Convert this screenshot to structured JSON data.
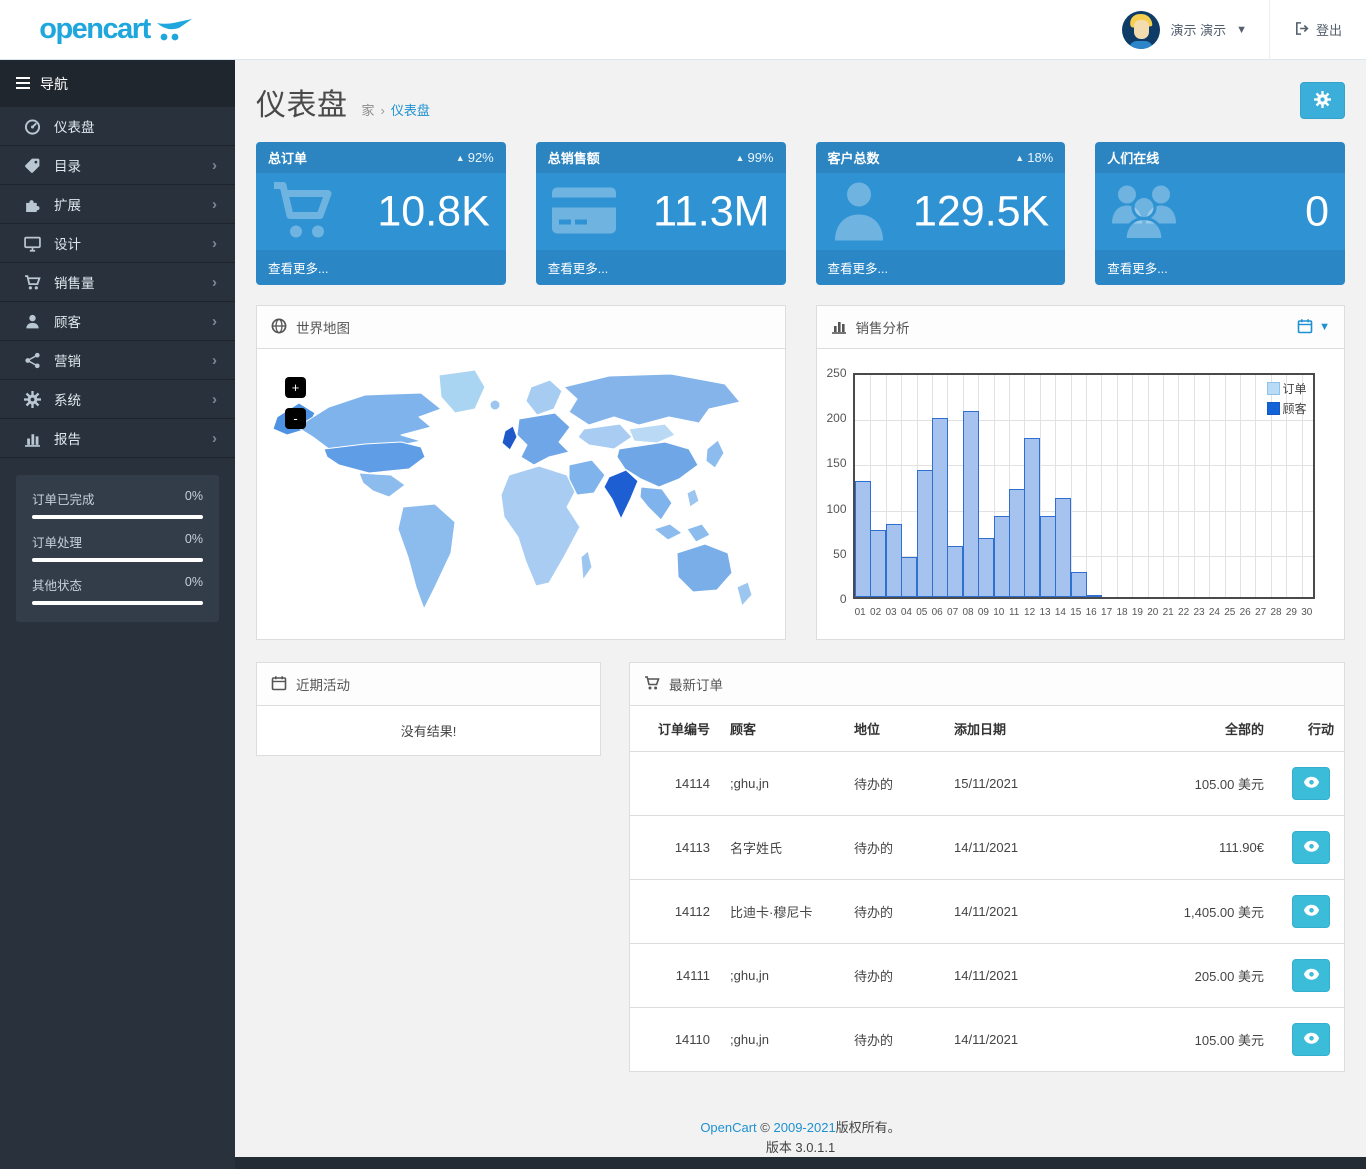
{
  "header": {
    "logo_text": "opencart",
    "user_name": "演示 演示",
    "logout_label": "登出"
  },
  "sidebar": {
    "nav_header": "导航",
    "items": [
      {
        "label": "仪表盘",
        "icon": "dashboard-icon",
        "has_children": false
      },
      {
        "label": "目录",
        "icon": "tags-icon",
        "has_children": true
      },
      {
        "label": "扩展",
        "icon": "puzzle-icon",
        "has_children": true
      },
      {
        "label": "设计",
        "icon": "monitor-icon",
        "has_children": true
      },
      {
        "label": "销售量",
        "icon": "cart-icon",
        "has_children": true
      },
      {
        "label": "顾客",
        "icon": "user-icon",
        "has_children": true
      },
      {
        "label": "营销",
        "icon": "share-icon",
        "has_children": true
      },
      {
        "label": "系统",
        "icon": "gear-icon",
        "has_children": true
      },
      {
        "label": "报告",
        "icon": "bar-chart-icon",
        "has_children": true
      }
    ],
    "stats": [
      {
        "label": "订单已完成",
        "value": "0%"
      },
      {
        "label": "订单处理",
        "value": "0%"
      },
      {
        "label": "其他状态",
        "value": "0%"
      }
    ]
  },
  "page": {
    "title": "仪表盘",
    "breadcrumb_home": "家",
    "breadcrumb_current": "仪表盘"
  },
  "tiles": [
    {
      "title": "总订单",
      "trend": "up",
      "percent": "92%",
      "value": "10.8K",
      "link": "查看更多...",
      "icon": "cart-icon"
    },
    {
      "title": "总销售额",
      "trend": "up",
      "percent": "99%",
      "value": "11.3M",
      "link": "查看更多...",
      "icon": "credit-card-icon"
    },
    {
      "title": "客户总数",
      "trend": "up",
      "percent": "18%",
      "value": "129.5K",
      "link": "查看更多...",
      "icon": "person-icon"
    },
    {
      "title": "人们在线",
      "trend": "",
      "percent": "",
      "value": "0",
      "link": "查看更多...",
      "icon": "group-icon"
    }
  ],
  "map_panel": {
    "title": "世界地图",
    "zoom_in": "+",
    "zoom_out": "-"
  },
  "chart_panel": {
    "title": "销售分析"
  },
  "chart_data": {
    "type": "bar",
    "title": "销售分析",
    "categories": [
      "01",
      "02",
      "03",
      "04",
      "05",
      "06",
      "07",
      "08",
      "09",
      "10",
      "11",
      "12",
      "13",
      "14",
      "15",
      "16",
      "17",
      "18",
      "19",
      "20",
      "21",
      "22",
      "23",
      "24",
      "25",
      "26",
      "27",
      "28",
      "29",
      "30"
    ],
    "series": [
      {
        "name": "订单",
        "fill": "#a5c3ee",
        "border": "#2f6fd0",
        "legend_fill": "#b8dcf6",
        "legend_border": "#8fc1e9",
        "values": [
          128,
          74,
          81,
          44,
          140,
          198,
          56,
          206,
          65,
          90,
          120,
          176,
          90,
          110,
          28,
          2,
          0,
          0,
          0,
          0,
          0,
          0,
          0,
          0,
          0,
          0,
          0,
          0,
          0,
          0
        ]
      },
      {
        "name": "顾客",
        "fill": "#1463d6",
        "border": "#1463d6",
        "legend_fill": "#1463d6",
        "legend_border": "#1258c4",
        "values": [
          0,
          0,
          0,
          0,
          0,
          0,
          0,
          0,
          0,
          0,
          0,
          0,
          0,
          0,
          0,
          0,
          0,
          0,
          0,
          0,
          0,
          0,
          0,
          0,
          0,
          0,
          0,
          0,
          0,
          0
        ]
      }
    ],
    "ylim": [
      0,
      250
    ],
    "yticks": [
      0,
      50,
      100,
      150,
      200,
      250
    ],
    "grid": true,
    "legend_position": "top-right"
  },
  "activity_panel": {
    "title": "近期活动",
    "empty": "没有结果!"
  },
  "orders_panel": {
    "title": "最新订单",
    "columns": [
      "订单编号",
      "顾客",
      "地位",
      "添加日期",
      "全部的",
      "行动"
    ],
    "rows": [
      {
        "id": "14114",
        "customer": ";ghu,jn",
        "status": "待办的",
        "date": "15/11/2021",
        "total": "105.00 美元"
      },
      {
        "id": "14113",
        "customer": "名字姓氏",
        "status": "待办的",
        "date": "14/11/2021",
        "total": "111.90€"
      },
      {
        "id": "14112",
        "customer": "比迪卡·穆尼卡",
        "status": "待办的",
        "date": "14/11/2021",
        "total": "1,405.00 美元"
      },
      {
        "id": "14111",
        "customer": ";ghu,jn",
        "status": "待办的",
        "date": "14/11/2021",
        "total": "205.00 美元"
      },
      {
        "id": "14110",
        "customer": ";ghu,jn",
        "status": "待办的",
        "date": "14/11/2021",
        "total": "105.00 美元"
      }
    ]
  },
  "footer": {
    "brand": "OpenCart",
    "copy_mid": " © ",
    "years": "2009-2021",
    "copy_tail": "版权所有。",
    "version": "版本 3.0.1.1"
  },
  "colors": {
    "accent_cyan": "#3bafda",
    "link_blue": "#1e91d2",
    "tile_header": "#2c84c1",
    "tile_body": "#2e92d3",
    "tile_footer": "#2b86c6",
    "sidebar_bg": "#29323c",
    "map_highlight": "#1d5fd2"
  }
}
